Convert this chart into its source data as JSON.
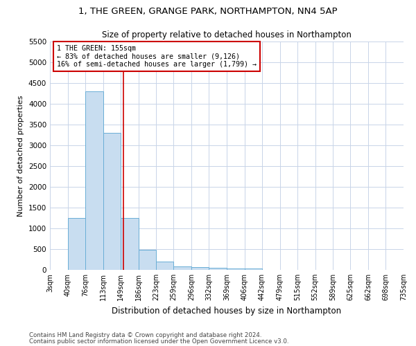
{
  "title1": "1, THE GREEN, GRANGE PARK, NORTHAMPTON, NN4 5AP",
  "title2": "Size of property relative to detached houses in Northampton",
  "xlabel": "Distribution of detached houses by size in Northampton",
  "ylabel": "Number of detached properties",
  "footnote1": "Contains HM Land Registry data © Crown copyright and database right 2024.",
  "footnote2": "Contains public sector information licensed under the Open Government Licence v3.0.",
  "annotation_line1": "1 THE GREEN: 155sqm",
  "annotation_line2": "← 83% of detached houses are smaller (9,126)",
  "annotation_line3": "16% of semi-detached houses are larger (1,799) →",
  "bar_color": "#c8ddf0",
  "bar_edge_color": "#6aaed6",
  "red_line_color": "#cc0000",
  "background_color": "#ffffff",
  "grid_color": "#c8d4e8",
  "categories": [
    "3sqm",
    "40sqm",
    "76sqm",
    "113sqm",
    "149sqm",
    "186sqm",
    "223sqm",
    "259sqm",
    "296sqm",
    "332sqm",
    "369sqm",
    "406sqm",
    "442sqm",
    "479sqm",
    "515sqm",
    "552sqm",
    "589sqm",
    "625sqm",
    "662sqm",
    "698sqm",
    "735sqm"
  ],
  "bin_edges": [
    3,
    40,
    76,
    113,
    149,
    186,
    223,
    259,
    296,
    332,
    369,
    406,
    442,
    479,
    515,
    552,
    589,
    625,
    662,
    698,
    735
  ],
  "values": [
    0,
    1250,
    4300,
    3300,
    1250,
    480,
    200,
    90,
    75,
    55,
    40,
    30,
    0,
    0,
    0,
    0,
    0,
    0,
    0,
    0,
    0
  ],
  "ylim": [
    0,
    5500
  ],
  "yticks": [
    0,
    500,
    1000,
    1500,
    2000,
    2500,
    3000,
    3500,
    4000,
    4500,
    5000,
    5500
  ],
  "red_line_x": 155,
  "figwidth": 6.0,
  "figheight": 5.0,
  "dpi": 100
}
